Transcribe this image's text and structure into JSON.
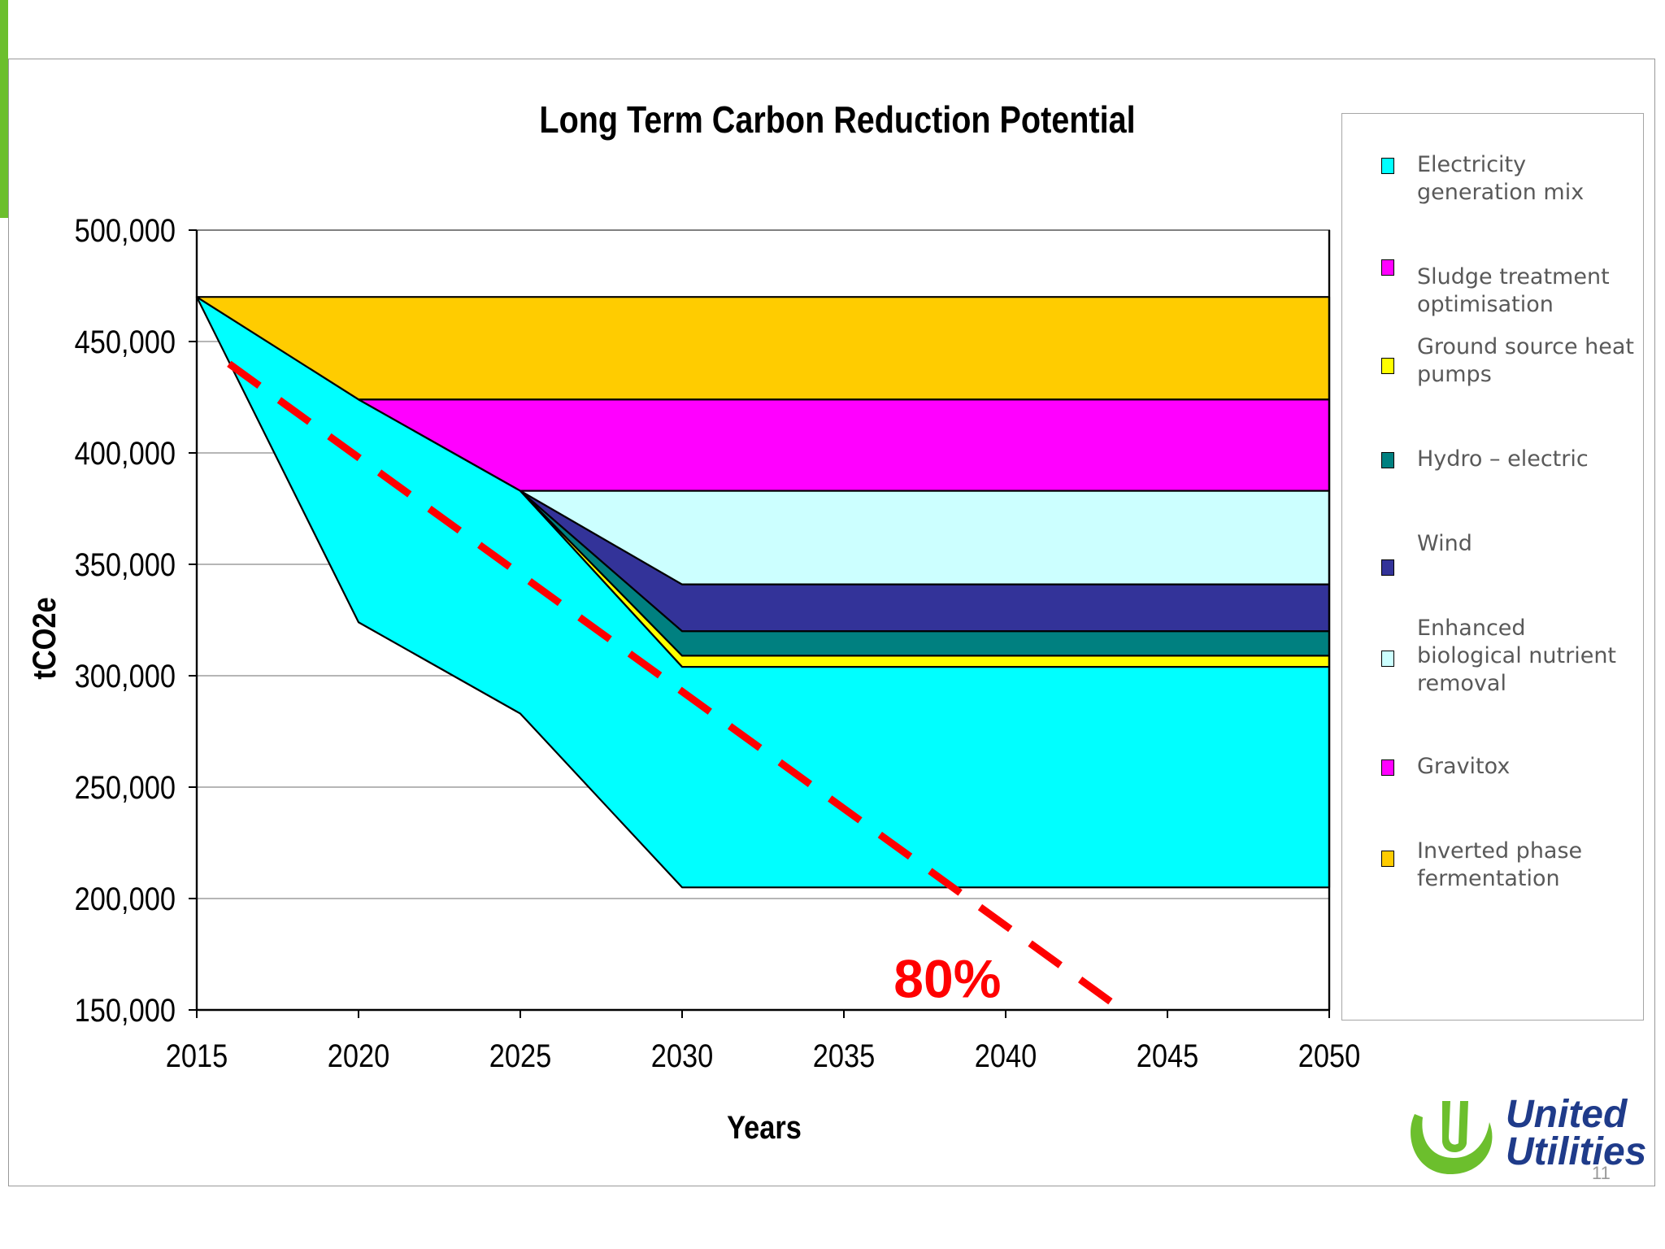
{
  "slide": {
    "accent_color": "#6cbf2d",
    "page_number": "11"
  },
  "chart_data": {
    "type": "area",
    "title": "Long Term Carbon Reduction Potential",
    "xlabel": "Years",
    "ylabel": "tCO2e",
    "xlim": [
      2015,
      2050
    ],
    "ylim": [
      150000,
      500000
    ],
    "x_ticks": [
      "2015",
      "2020",
      "2025",
      "2030",
      "2035",
      "2040",
      "2045",
      "2050"
    ],
    "x_tick_values": [
      2015,
      2020,
      2025,
      2030,
      2035,
      2040,
      2045,
      2050
    ],
    "y_ticks": [
      "150,000",
      "200,000",
      "250,000",
      "300,000",
      "350,000",
      "400,000",
      "450,000",
      "500,000"
    ],
    "y_tick_values": [
      150000,
      200000,
      250000,
      300000,
      350000,
      400000,
      450000,
      500000
    ],
    "grid": true,
    "legend_position": "right",
    "bands": [
      {
        "name": "Electricity generation mix",
        "color": "#00ffff",
        "upper": [
          [
            2015,
            470000
          ],
          [
            2020,
            424000
          ],
          [
            2025,
            383000
          ],
          [
            2030,
            304000
          ],
          [
            2050,
            304000
          ]
        ],
        "lower": [
          [
            2015,
            470000
          ],
          [
            2020,
            324000
          ],
          [
            2025,
            283000
          ],
          [
            2030,
            205000
          ],
          [
            2050,
            205000
          ]
        ]
      },
      {
        "name": "Ground source heat pumps",
        "color": "#ffff00",
        "upper": [
          [
            2025,
            383000
          ],
          [
            2030,
            309000
          ],
          [
            2050,
            309000
          ]
        ],
        "lower": [
          [
            2025,
            383000
          ],
          [
            2030,
            304000
          ],
          [
            2050,
            304000
          ]
        ]
      },
      {
        "name": "Hydro – electric",
        "color": "#008080",
        "upper": [
          [
            2025,
            383000
          ],
          [
            2030,
            320000
          ],
          [
            2050,
            320000
          ]
        ],
        "lower": [
          [
            2025,
            383000
          ],
          [
            2030,
            309000
          ],
          [
            2050,
            309000
          ]
        ]
      },
      {
        "name": "Wind",
        "color": "#333399",
        "upper": [
          [
            2025,
            383000
          ],
          [
            2030,
            341000
          ],
          [
            2050,
            341000
          ]
        ],
        "lower": [
          [
            2025,
            383000
          ],
          [
            2030,
            320000
          ],
          [
            2050,
            320000
          ]
        ]
      },
      {
        "name": "Enhanced biological nutrient removal",
        "color": "#ccffff",
        "upper": [
          [
            2025,
            383000
          ],
          [
            2050,
            383000
          ]
        ],
        "lower": [
          [
            2025,
            383000
          ],
          [
            2030,
            341000
          ],
          [
            2050,
            341000
          ]
        ]
      },
      {
        "name": "Sludge treatment optimisation",
        "color": "#ff00ff",
        "upper": [
          [
            2020,
            424000
          ],
          [
            2050,
            424000
          ]
        ],
        "lower": [
          [
            2020,
            424000
          ],
          [
            2025,
            383000
          ],
          [
            2050,
            383000
          ]
        ]
      },
      {
        "name": "Inverted phase fermentation",
        "color": "#ffcc00",
        "upper": [
          [
            2015,
            470000
          ],
          [
            2050,
            470000
          ]
        ],
        "lower": [
          [
            2015,
            470000
          ],
          [
            2020,
            424000
          ],
          [
            2050,
            424000
          ]
        ]
      }
    ],
    "target_line": {
      "color": "#ff0000",
      "points": [
        [
          2016,
          440000
        ],
        [
          2043.6,
          150000
        ]
      ]
    },
    "annotation": {
      "text": "80%",
      "x": 2038.2,
      "y": 160000,
      "color": "#ff0000"
    }
  },
  "legend": {
    "items": [
      {
        "label": "Electricity generation mix",
        "color": "#00ffff"
      },
      {
        "label": "Sludge treatment optimisation",
        "color": "#ff00ff"
      },
      {
        "label": "Ground source heat pumps",
        "color": "#ffff00"
      },
      {
        "label": "Hydro – electric",
        "color": "#008080"
      },
      {
        "label": "Wind",
        "color": "#333399"
      },
      {
        "label": "Enhanced biological nutrient removal",
        "color": "#ccffff"
      },
      {
        "label": "Gravitox",
        "color": "#ff00ff"
      },
      {
        "label": "Inverted phase fermentation",
        "color": "#ffcc00"
      }
    ]
  },
  "logo": {
    "line1": "United",
    "line2": "Utilities",
    "primary_color": "#1f3b8a",
    "secondary_color": "#6cbf2d"
  }
}
